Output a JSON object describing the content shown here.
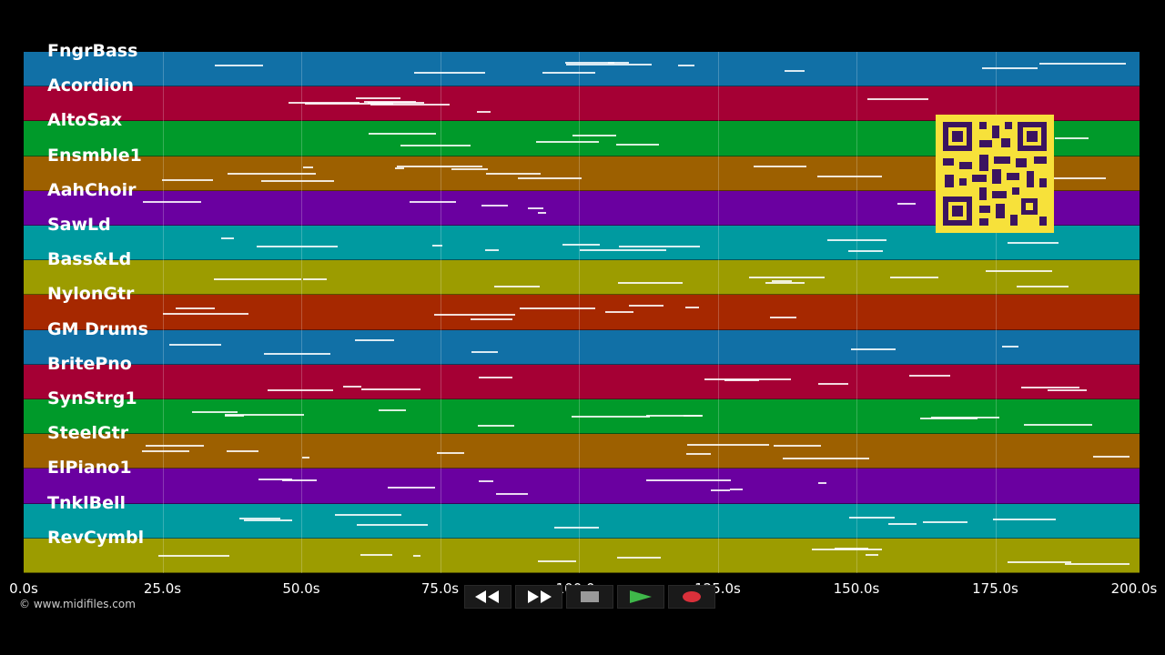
{
  "tracks": [
    {
      "label": "FngrBass",
      "color": "#1170a6"
    },
    {
      "label": "Acordion",
      "color": "#a50034"
    },
    {
      "label": "AltoSax",
      "color": "#009a2a"
    },
    {
      "label": "Ensmble1",
      "color": "#9d6000"
    },
    {
      "label": "AahChoir",
      "color": "#6a00a0"
    },
    {
      "label": "SawLd",
      "color": "#009aa0"
    },
    {
      "label": "Bass&Ld",
      "color": "#9c9c00"
    },
    {
      "label": "NylonGtr",
      "color": "#a62800"
    },
    {
      "label": "GM Drums",
      "color": "#1170a6"
    },
    {
      "label": "BritePno",
      "color": "#a50034"
    },
    {
      "label": "SynStrg1",
      "color": "#009a2a"
    },
    {
      "label": "SteelGtr",
      "color": "#9d6000"
    },
    {
      "label": "ElPiano1",
      "color": "#6a00a0"
    },
    {
      "label": "TnklBell",
      "color": "#009aa0"
    },
    {
      "label": "RevCymbl",
      "color": "#9c9c00"
    }
  ],
  "timeline": {
    "max_seconds": 200,
    "ticks": [
      "0.0s",
      "25.0s",
      "50.0s",
      "75.0s",
      "100.0s",
      "125.0s",
      "150.0s",
      "175.0s",
      "200.0s"
    ]
  },
  "copyright": "© www.midifiles.com",
  "transport": {
    "rewind": {
      "icon": "rewind-icon"
    },
    "fast_forward": {
      "icon": "fast-forward-icon"
    },
    "stop": {
      "icon": "stop-icon"
    },
    "play": {
      "icon": "play-icon",
      "color": "#3fb84a"
    },
    "record": {
      "icon": "record-icon",
      "color": "#d9303a"
    }
  },
  "qr_code": {
    "accent": "#f7e13a",
    "module_color": "#3b1460"
  }
}
